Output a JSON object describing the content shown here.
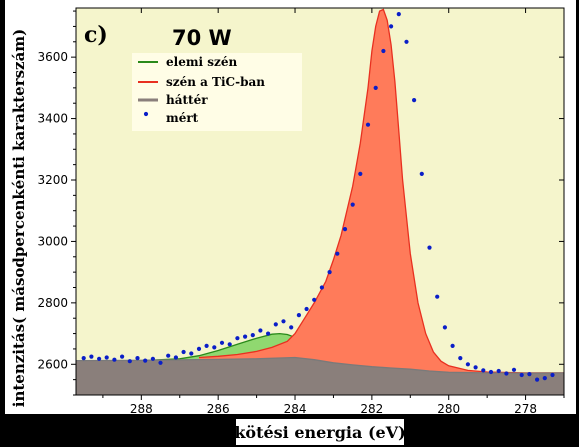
{
  "chart_data": {
    "type": "area",
    "panel_label": "c)",
    "title": "70 W",
    "xlabel": "kötési energia (eV)",
    "ylabel": "intenzitás( másodpercenkénti karakterszám)",
    "xlim": [
      289.7,
      277.0
    ],
    "ylim": [
      2500,
      3760
    ],
    "x_reversed": true,
    "x_ticks": [
      288,
      286,
      284,
      282,
      280,
      278
    ],
    "y_ticks": [
      2600,
      2800,
      3000,
      3200,
      3400,
      3600
    ],
    "legend_placement": "upper-left",
    "series": [
      {
        "name": "elemi szén",
        "type": "area",
        "color": "#2a8a1a",
        "fill": "#90d870",
        "x": [
          289.7,
          288,
          287,
          286.5,
          286,
          285.5,
          285,
          284.6,
          284.4,
          284.2,
          284.0,
          283.8,
          283.5,
          283.0,
          282.5,
          282.0
        ],
        "y": [
          2612,
          2612,
          2618,
          2628,
          2645,
          2665,
          2685,
          2698,
          2700,
          2697,
          2688,
          2672,
          2650,
          2620,
          2600,
          2595
        ]
      },
      {
        "name": "szén a TiC-ban",
        "type": "area",
        "color": "#e83020",
        "fill": "#ff7b5a",
        "x": [
          286.5,
          286,
          285.5,
          285,
          284.6,
          284.2,
          284.0,
          283.8,
          283.5,
          283.2,
          283.0,
          282.8,
          282.5,
          282.3,
          282.1,
          282.0,
          281.9,
          281.8,
          281.7,
          281.6,
          281.5,
          281.4,
          281.3,
          281.2,
          281.0,
          280.8,
          280.6,
          280.4,
          280.2,
          280.0,
          279.5,
          279.0,
          278.0,
          277.0
        ],
        "y": [
          2622,
          2626,
          2632,
          2642,
          2655,
          2675,
          2700,
          2740,
          2800,
          2870,
          2940,
          3020,
          3180,
          3320,
          3500,
          3620,
          3700,
          3750,
          3755,
          3720,
          3640,
          3520,
          3360,
          3200,
          2960,
          2800,
          2700,
          2640,
          2610,
          2595,
          2580,
          2575,
          2572,
          2572
        ]
      },
      {
        "name": "háttér",
        "type": "area",
        "color": "#7a7a7a",
        "fill": "#8a7f7b",
        "x": [
          289.7,
          288,
          286,
          285,
          284.5,
          284,
          283.5,
          283,
          282.5,
          282,
          281.5,
          281,
          280.5,
          280,
          279,
          278,
          277
        ],
        "y": [
          2612,
          2613,
          2616,
          2618,
          2620,
          2622,
          2615,
          2605,
          2598,
          2592,
          2588,
          2584,
          2578,
          2574,
          2572,
          2571,
          2572
        ]
      },
      {
        "name": "mért",
        "type": "scatter",
        "color": "#0a1ec8",
        "x": [
          289.5,
          289.3,
          289.1,
          288.9,
          288.7,
          288.5,
          288.3,
          288.1,
          287.9,
          287.7,
          287.5,
          287.3,
          287.1,
          286.9,
          286.7,
          286.5,
          286.3,
          286.1,
          285.9,
          285.7,
          285.5,
          285.3,
          285.1,
          284.9,
          284.7,
          284.5,
          284.3,
          284.1,
          283.9,
          283.7,
          283.5,
          283.3,
          283.1,
          282.9,
          282.7,
          282.5,
          282.3,
          282.1,
          281.9,
          281.7,
          281.5,
          281.3,
          281.1,
          280.9,
          280.7,
          280.5,
          280.3,
          280.1,
          279.9,
          279.7,
          279.5,
          279.3,
          279.1,
          278.9,
          278.7,
          278.5,
          278.3,
          278.1,
          277.9,
          277.7,
          277.5,
          277.3
        ],
        "y": [
          2620,
          2625,
          2618,
          2622,
          2615,
          2625,
          2610,
          2620,
          2612,
          2618,
          2605,
          2628,
          2622,
          2640,
          2635,
          2650,
          2660,
          2655,
          2670,
          2665,
          2685,
          2690,
          2695,
          2710,
          2700,
          2730,
          2740,
          2720,
          2760,
          2780,
          2810,
          2850,
          2900,
          2960,
          3040,
          3120,
          3220,
          3380,
          3500,
          3620,
          3700,
          3740,
          3650,
          3460,
          3220,
          2980,
          2820,
          2720,
          2660,
          2620,
          2600,
          2590,
          2580,
          2575,
          2578,
          2570,
          2582,
          2565,
          2568,
          2550,
          2555,
          2565
        ]
      }
    ]
  }
}
